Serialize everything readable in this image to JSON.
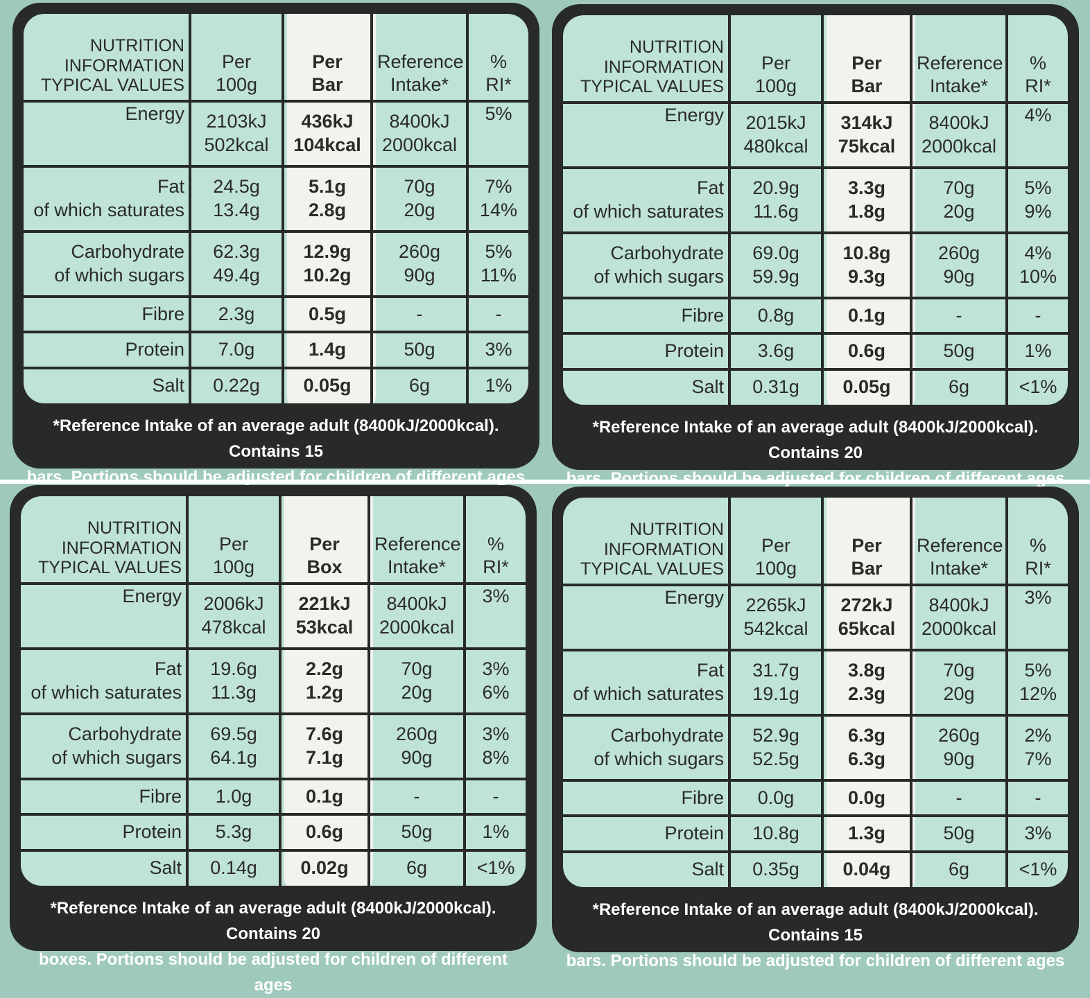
{
  "header_labels": {
    "title_lines": [
      "NUTRITION",
      "INFORMATION",
      "TYPICAL VALUES"
    ],
    "per_100g": [
      "Per",
      "100g"
    ],
    "reference_intake": [
      "Reference",
      "Intake*"
    ],
    "percent_ri": [
      "%",
      "RI*"
    ]
  },
  "row_labels": {
    "energy": "Energy",
    "fat": "Fat",
    "saturates": "of which saturates",
    "carbohydrate": "Carbohydrate",
    "sugars": "of which sugars",
    "fibre": "Fibre",
    "protein": "Protein",
    "salt": "Salt"
  },
  "panels": [
    {
      "per_portion": [
        "Per",
        "Bar"
      ],
      "energy": {
        "per100": [
          "2103kJ",
          "502kcal"
        ],
        "portion": [
          "436kJ",
          "104kcal"
        ],
        "ri": [
          "8400kJ",
          "2000kcal"
        ],
        "pct": "5%"
      },
      "fat": {
        "per100": "24.5g",
        "portion": "5.1g",
        "ri": "70g",
        "pct": "7%"
      },
      "saturates": {
        "per100": "13.4g",
        "portion": "2.8g",
        "ri": "20g",
        "pct": "14%"
      },
      "carbohydrate": {
        "per100": "62.3g",
        "portion": "12.9g",
        "ri": "260g",
        "pct": "5%"
      },
      "sugars": {
        "per100": "49.4g",
        "portion": "10.2g",
        "ri": "90g",
        "pct": "11%"
      },
      "fibre": {
        "per100": "2.3g",
        "portion": "0.5g",
        "ri": "-",
        "pct": "-"
      },
      "protein": {
        "per100": "7.0g",
        "portion": "1.4g",
        "ri": "50g",
        "pct": "3%"
      },
      "salt": {
        "per100": "0.22g",
        "portion": "0.05g",
        "ri": "6g",
        "pct": "1%"
      },
      "footer": [
        "*Reference Intake of an average adult (8400kJ/2000kcal). Contains 15",
        "bars. Portions should be adjusted for children of different ages"
      ]
    },
    {
      "per_portion": [
        "Per",
        "Bar"
      ],
      "energy": {
        "per100": [
          "2015kJ",
          "480kcal"
        ],
        "portion": [
          "314kJ",
          "75kcal"
        ],
        "ri": [
          "8400kJ",
          "2000kcal"
        ],
        "pct": "4%"
      },
      "fat": {
        "per100": "20.9g",
        "portion": "3.3g",
        "ri": "70g",
        "pct": "5%"
      },
      "saturates": {
        "per100": "11.6g",
        "portion": "1.8g",
        "ri": "20g",
        "pct": "9%"
      },
      "carbohydrate": {
        "per100": "69.0g",
        "portion": "10.8g",
        "ri": "260g",
        "pct": "4%"
      },
      "sugars": {
        "per100": "59.9g",
        "portion": "9.3g",
        "ri": "90g",
        "pct": "10%"
      },
      "fibre": {
        "per100": "0.8g",
        "portion": "0.1g",
        "ri": "-",
        "pct": "-"
      },
      "protein": {
        "per100": "3.6g",
        "portion": "0.6g",
        "ri": "50g",
        "pct": "1%"
      },
      "salt": {
        "per100": "0.31g",
        "portion": "0.05g",
        "ri": "6g",
        "pct": "<1%"
      },
      "footer": [
        "*Reference Intake of an average adult (8400kJ/2000kcal). Contains 20",
        "bars. Portions should be adjusted for children of different ages"
      ]
    },
    {
      "per_portion": [
        "Per",
        "Box"
      ],
      "energy": {
        "per100": [
          "2006kJ",
          "478kcal"
        ],
        "portion": [
          "221kJ",
          "53kcal"
        ],
        "ri": [
          "8400kJ",
          "2000kcal"
        ],
        "pct": "3%"
      },
      "fat": {
        "per100": "19.6g",
        "portion": "2.2g",
        "ri": "70g",
        "pct": "3%"
      },
      "saturates": {
        "per100": "11.3g",
        "portion": "1.2g",
        "ri": "20g",
        "pct": "6%"
      },
      "carbohydrate": {
        "per100": "69.5g",
        "portion": "7.6g",
        "ri": "260g",
        "pct": "3%"
      },
      "sugars": {
        "per100": "64.1g",
        "portion": "7.1g",
        "ri": "90g",
        "pct": "8%"
      },
      "fibre": {
        "per100": "1.0g",
        "portion": "0.1g",
        "ri": "-",
        "pct": "-"
      },
      "protein": {
        "per100": "5.3g",
        "portion": "0.6g",
        "ri": "50g",
        "pct": "1%"
      },
      "salt": {
        "per100": "0.14g",
        "portion": "0.02g",
        "ri": "6g",
        "pct": "<1%"
      },
      "footer": [
        "*Reference Intake of an average adult (8400kJ/2000kcal). Contains 20",
        "boxes. Portions should be adjusted for children of different ages"
      ]
    },
    {
      "per_portion": [
        "Per",
        "Bar"
      ],
      "energy": {
        "per100": [
          "2265kJ",
          "542kcal"
        ],
        "portion": [
          "272kJ",
          "65kcal"
        ],
        "ri": [
          "8400kJ",
          "2000kcal"
        ],
        "pct": "3%"
      },
      "fat": {
        "per100": "31.7g",
        "portion": "3.8g",
        "ri": "70g",
        "pct": "5%"
      },
      "saturates": {
        "per100": "19.1g",
        "portion": "2.3g",
        "ri": "20g",
        "pct": "12%"
      },
      "carbohydrate": {
        "per100": "52.9g",
        "portion": "6.3g",
        "ri": "260g",
        "pct": "2%"
      },
      "sugars": {
        "per100": "52.5g",
        "portion": "6.3g",
        "ri": "90g",
        "pct": "7%"
      },
      "fibre": {
        "per100": "0.0g",
        "portion": "0.0g",
        "ri": "-",
        "pct": "-"
      },
      "protein": {
        "per100": "10.8g",
        "portion": "1.3g",
        "ri": "50g",
        "pct": "3%"
      },
      "salt": {
        "per100": "0.35g",
        "portion": "0.04g",
        "ri": "6g",
        "pct": "<1%"
      },
      "footer": [
        "*Reference Intake of an average adult (8400kJ/2000kcal). Contains 15",
        "bars. Portions should be adjusted for children of different ages"
      ]
    }
  ]
}
